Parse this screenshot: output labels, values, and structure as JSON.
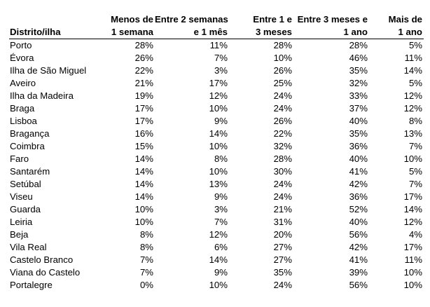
{
  "table": {
    "headers": [
      {
        "line1": "",
        "line2": "Distrito/ilha"
      },
      {
        "line1": "Menos de",
        "line2": "1 semana"
      },
      {
        "line1": "Entre 2 semanas",
        "line2": "e 1 mês"
      },
      {
        "line1": "Entre 1 e",
        "line2": "3 meses"
      },
      {
        "line1": "Entre 3 meses e",
        "line2": "1 ano"
      },
      {
        "line1": "Mais de",
        "line2": "1 ano"
      }
    ],
    "rows": [
      [
        "Porto",
        "28%",
        "11%",
        "28%",
        "28%",
        "5%"
      ],
      [
        "Évora",
        "26%",
        "7%",
        "10%",
        "46%",
        "11%"
      ],
      [
        "Ilha de São Miguel",
        "22%",
        "3%",
        "26%",
        "35%",
        "14%"
      ],
      [
        "Aveiro",
        "21%",
        "17%",
        "25%",
        "32%",
        "5%"
      ],
      [
        "Ilha da Madeira",
        "19%",
        "12%",
        "24%",
        "33%",
        "12%"
      ],
      [
        "Braga",
        "17%",
        "10%",
        "24%",
        "37%",
        "12%"
      ],
      [
        "Lisboa",
        "17%",
        "9%",
        "26%",
        "40%",
        "8%"
      ],
      [
        "Bragança",
        "16%",
        "14%",
        "22%",
        "35%",
        "13%"
      ],
      [
        "Coimbra",
        "15%",
        "10%",
        "32%",
        "36%",
        "7%"
      ],
      [
        "Faro",
        "14%",
        "8%",
        "28%",
        "40%",
        "10%"
      ],
      [
        "Santarém",
        "14%",
        "10%",
        "30%",
        "41%",
        "5%"
      ],
      [
        "Setúbal",
        "14%",
        "13%",
        "24%",
        "42%",
        "7%"
      ],
      [
        "Viseu",
        "14%",
        "9%",
        "24%",
        "36%",
        "17%"
      ],
      [
        "Guarda",
        "10%",
        "3%",
        "21%",
        "52%",
        "14%"
      ],
      [
        "Leiria",
        "10%",
        "7%",
        "31%",
        "40%",
        "12%"
      ],
      [
        "Beja",
        "8%",
        "12%",
        "20%",
        "56%",
        "4%"
      ],
      [
        "Vila Real",
        "8%",
        "6%",
        "27%",
        "42%",
        "17%"
      ],
      [
        "Castelo Branco",
        "7%",
        "14%",
        "27%",
        "41%",
        "11%"
      ],
      [
        "Viana do Castelo",
        "7%",
        "9%",
        "35%",
        "39%",
        "10%"
      ],
      [
        "Portalegre",
        "0%",
        "10%",
        "24%",
        "56%",
        "10%"
      ]
    ]
  }
}
